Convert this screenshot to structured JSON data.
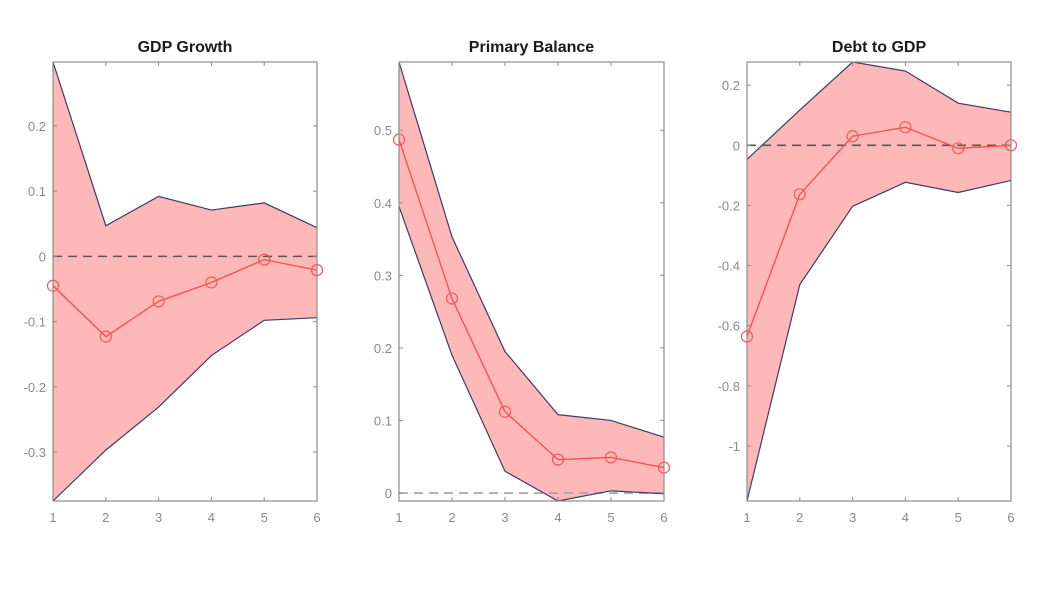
{
  "chart_data": [
    {
      "type": "area",
      "title": "GDP Growth",
      "xlabel": "",
      "ylabel": "",
      "x": [
        1,
        2,
        3,
        4,
        5,
        6
      ],
      "xlim": [
        1,
        6
      ],
      "ylim": [
        -0.375,
        0.298
      ],
      "xticks": [
        1,
        2,
        3,
        4,
        5,
        6
      ],
      "yticks": [
        -0.3,
        -0.2,
        -0.1,
        0,
        0.1,
        0.2
      ],
      "ytick_labels": [
        "-0.3",
        "-0.2",
        "-0.1",
        "0",
        "0.1",
        "0.2"
      ],
      "grid": false,
      "reference_line": {
        "y": 0,
        "style": "dashed",
        "color": "#555555"
      },
      "series": [
        {
          "name": "upper",
          "values": [
            0.298,
            0.047,
            0.092,
            0.071,
            0.082,
            0.044
          ]
        },
        {
          "name": "median",
          "values": [
            -0.045,
            -0.123,
            -0.069,
            -0.04,
            -0.005,
            -0.021
          ]
        },
        {
          "name": "lower",
          "values": [
            -0.375,
            -0.297,
            -0.231,
            -0.152,
            -0.098,
            -0.094
          ]
        }
      ]
    },
    {
      "type": "area",
      "title": "Primary Balance",
      "xlabel": "",
      "ylabel": "",
      "x": [
        1,
        2,
        3,
        4,
        5,
        6
      ],
      "xlim": [
        1,
        6
      ],
      "ylim": [
        -0.011,
        0.594
      ],
      "xticks": [
        1,
        2,
        3,
        4,
        5,
        6
      ],
      "yticks": [
        0,
        0.1,
        0.2,
        0.3,
        0.4,
        0.5
      ],
      "ytick_labels": [
        "0",
        "0.1",
        "0.2",
        "0.3",
        "0.4",
        "0.5"
      ],
      "grid": false,
      "reference_line": {
        "y": 0,
        "style": "dashed",
        "color": "#a0a0a0"
      },
      "series": [
        {
          "name": "upper",
          "values": [
            0.594,
            0.353,
            0.195,
            0.108,
            0.1,
            0.077
          ]
        },
        {
          "name": "median",
          "values": [
            0.487,
            0.268,
            0.112,
            0.046,
            0.049,
            0.035
          ]
        },
        {
          "name": "lower",
          "values": [
            0.395,
            0.19,
            0.03,
            -0.011,
            0.003,
            -0.001
          ]
        }
      ]
    },
    {
      "type": "area",
      "title": "Debt to GDP",
      "xlabel": "",
      "ylabel": "",
      "x": [
        1,
        2,
        3,
        4,
        5,
        6
      ],
      "xlim": [
        1,
        6
      ],
      "ylim": [
        -1.183,
        0.277
      ],
      "xticks": [
        1,
        2,
        3,
        4,
        5,
        6
      ],
      "yticks": [
        -1,
        -0.8,
        -0.6,
        -0.4,
        -0.2,
        0,
        0.2
      ],
      "ytick_labels": [
        "-1",
        "-0.8",
        "-0.6",
        "-0.4",
        "-0.2",
        "0",
        "0.2"
      ],
      "grid": false,
      "reference_line": {
        "y": 0,
        "style": "dashed",
        "color": "#555555"
      },
      "series": [
        {
          "name": "upper",
          "values": [
            -0.047,
            0.117,
            0.277,
            0.247,
            0.14,
            0.11
          ]
        },
        {
          "name": "median",
          "values": [
            -0.636,
            -0.163,
            0.03,
            0.06,
            -0.01,
            0.0
          ]
        },
        {
          "name": "lower",
          "values": [
            -1.183,
            -0.463,
            -0.203,
            -0.123,
            -0.157,
            -0.117
          ]
        }
      ]
    }
  ],
  "colors": {
    "band_fill": "#ffb8b8",
    "band_edge": "#3a3a6a",
    "median_line": "#ff4a4a"
  }
}
